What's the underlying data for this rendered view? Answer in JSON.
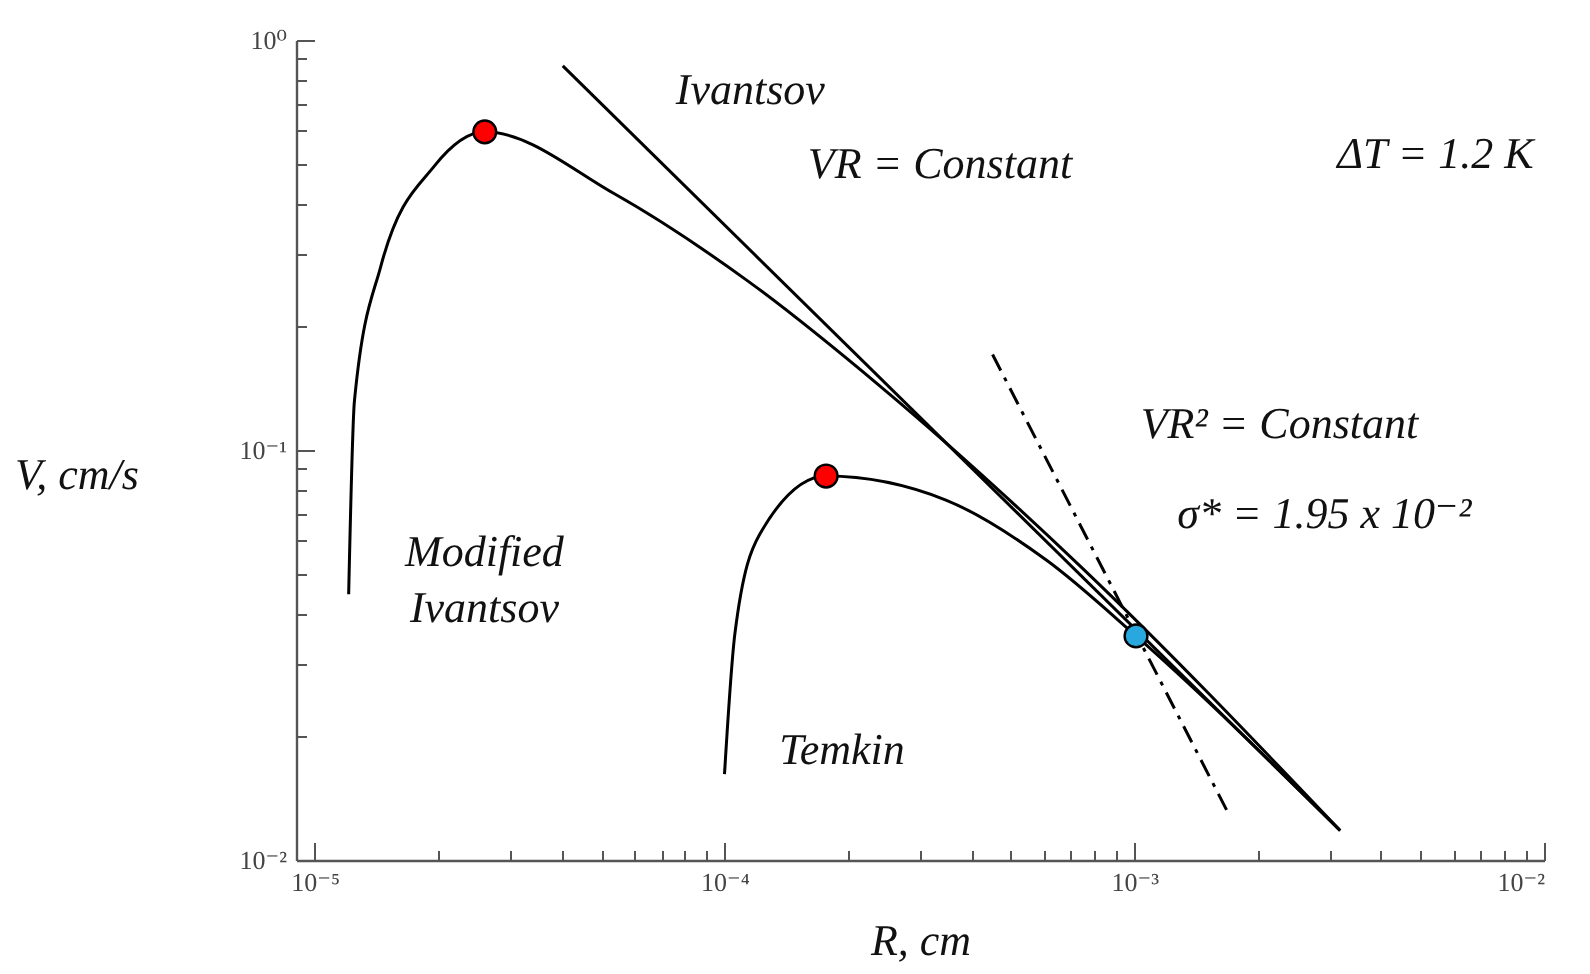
{
  "chart_data": {
    "type": "line",
    "xlabel": "R, cm",
    "ylabel": "V, cm/s",
    "log": "xy",
    "grid": false,
    "xlim": [
      9e-06,
      0.01
    ],
    "ylim": [
      0.01,
      1
    ],
    "xticks": [
      {
        "value": 1e-05,
        "label": "10⁻⁵"
      },
      {
        "value": 2e-05,
        "label": null
      },
      {
        "value": 3e-05,
        "label": null
      },
      {
        "value": 4e-05,
        "label": null
      },
      {
        "value": 5e-05,
        "label": null
      },
      {
        "value": 6e-05,
        "label": null
      },
      {
        "value": 7e-05,
        "label": null
      },
      {
        "value": 8e-05,
        "label": null
      },
      {
        "value": 9e-05,
        "label": null
      },
      {
        "value": 0.0001,
        "label": "10⁻⁴"
      },
      {
        "value": 0.0002,
        "label": null
      },
      {
        "value": 0.0003,
        "label": null
      },
      {
        "value": 0.0004,
        "label": null
      },
      {
        "value": 0.0005,
        "label": null
      },
      {
        "value": 0.0006,
        "label": null
      },
      {
        "value": 0.0007,
        "label": null
      },
      {
        "value": 0.0008,
        "label": null
      },
      {
        "value": 0.0009,
        "label": null
      },
      {
        "value": 0.001,
        "label": "10⁻³"
      },
      {
        "value": 0.002,
        "label": null
      },
      {
        "value": 0.003,
        "label": null
      },
      {
        "value": 0.004,
        "label": null
      },
      {
        "value": 0.005,
        "label": null
      },
      {
        "value": 0.006,
        "label": null
      },
      {
        "value": 0.007,
        "label": null
      },
      {
        "value": 0.008,
        "label": null
      },
      {
        "value": 0.009,
        "label": null
      },
      {
        "value": 0.01,
        "label": "10⁻²"
      }
    ],
    "yticks": [
      {
        "value": 0.01,
        "label": "10⁻²"
      },
      {
        "value": 0.02,
        "label": null
      },
      {
        "value": 0.03,
        "label": null
      },
      {
        "value": 0.04,
        "label": null
      },
      {
        "value": 0.05,
        "label": null
      },
      {
        "value": 0.06,
        "label": null
      },
      {
        "value": 0.07,
        "label": null
      },
      {
        "value": 0.08,
        "label": null
      },
      {
        "value": 0.09,
        "label": null
      },
      {
        "value": 0.1,
        "label": "10⁻¹"
      },
      {
        "value": 0.2,
        "label": null
      },
      {
        "value": 0.3,
        "label": null
      },
      {
        "value": 0.4,
        "label": null
      },
      {
        "value": 0.5,
        "label": null
      },
      {
        "value": 0.6,
        "label": null
      },
      {
        "value": 0.7,
        "label": null
      },
      {
        "value": 0.8,
        "label": null
      },
      {
        "value": 0.9,
        "label": null
      },
      {
        "value": 1,
        "label": "10⁰"
      }
    ],
    "series": [
      {
        "color": "#000000",
        "line_style": "solid",
        "x": [
          4.03e-05,
          0.00318
        ],
        "values": [
          0.865,
          0.0118
        ]
      },
      {
        "color": "#000000",
        "line_style": "solid",
        "x": [
          1.21e-05,
          1.25e-05,
          1.45e-05,
          1.96e-05,
          2.6e-05,
          5.4e-05,
          0.000113,
          0.00024,
          0.000738,
          0.00318
        ],
        "values": [
          0.0445,
          0.132,
          0.281,
          0.493,
          0.597,
          0.421,
          0.26,
          0.143,
          0.0521,
          0.0118
        ]
      },
      {
        "color": "#000000",
        "line_style": "solid",
        "x": [
          0.0001,
          0.000106,
          0.000122,
          0.000177,
          0.000347,
          0.00061,
          0.00101,
          0.00318
        ],
        "values": [
          0.0162,
          0.0356,
          0.0624,
          0.0864,
          0.0755,
          0.0539,
          0.0352,
          0.0118
        ]
      },
      {
        "color": "#000000",
        "line_style": "dashdot",
        "x": [
          0.000451,
          0.00169
        ],
        "values": [
          0.171,
          0.0131
        ]
      },
      {
        "type": "scatter",
        "marker": "circle",
        "x": [
          2.6e-05,
          0.000177,
          0.00101
        ],
        "values": [
          0.597,
          0.0864,
          0.0352
        ],
        "colors": [
          "#ff0000",
          "#ff0000",
          "#29a8e0"
        ]
      }
    ],
    "annotations": [
      "Ivantsov",
      "VR = Constant",
      "ΔT = 1.2 K",
      "VR² = Constant",
      "σ* = 1.95 x 10⁻²",
      "Modified\nIvantsov",
      "Temkin"
    ]
  }
}
